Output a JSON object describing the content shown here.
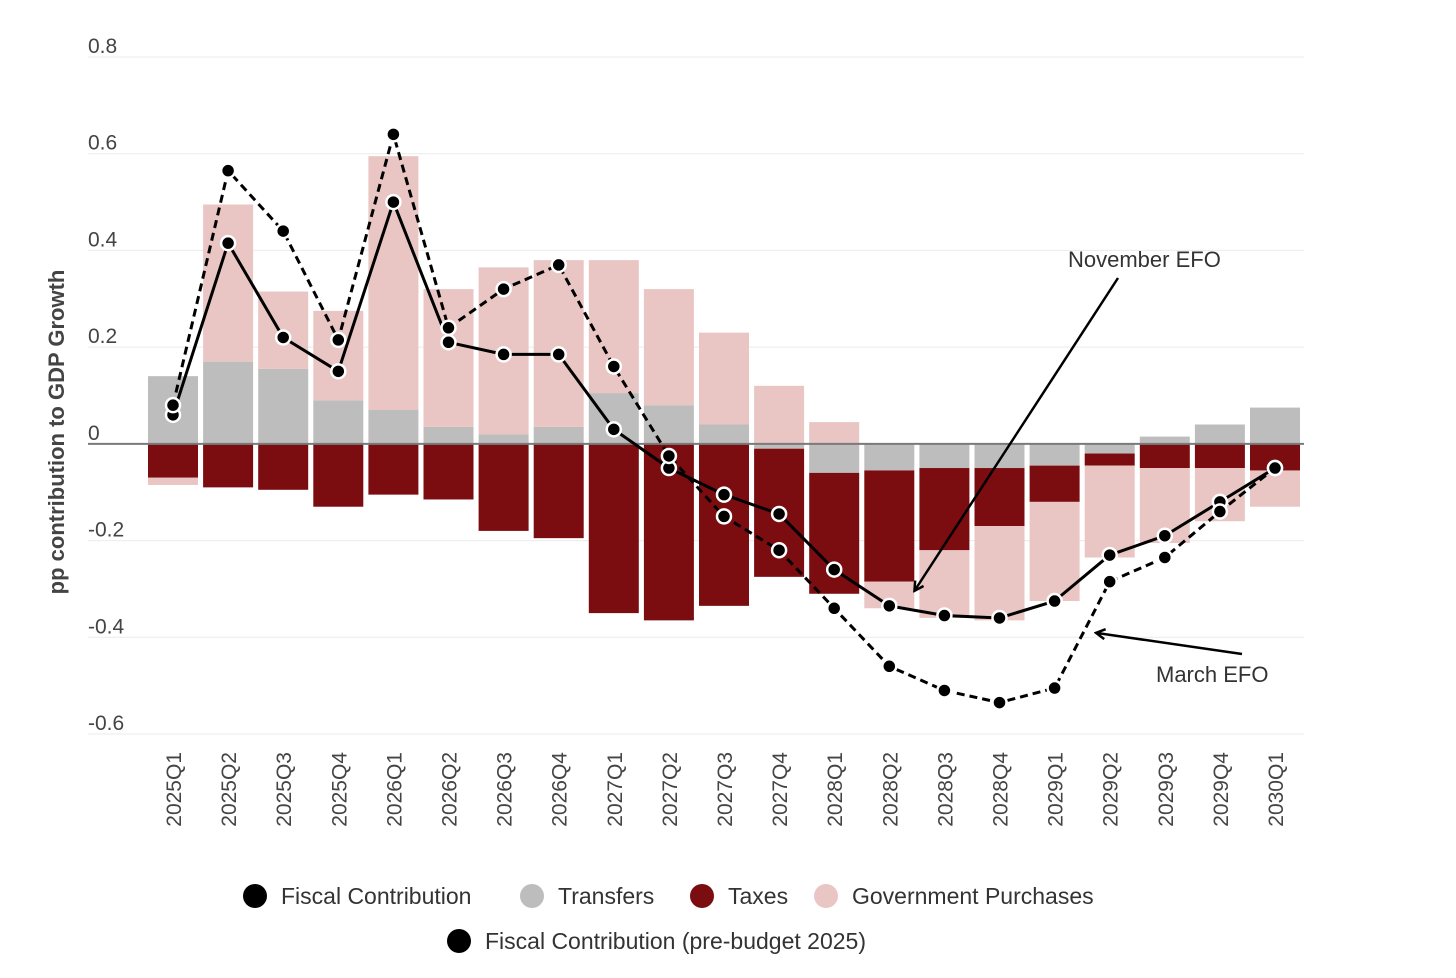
{
  "chart_data": {
    "type": "bar",
    "stacked": true,
    "ylabel": "pp contribution to GDP Growth",
    "ylim": [
      -0.6,
      0.8
    ],
    "yticks": [
      0.8,
      0.6,
      0.4,
      0.2,
      0,
      -0.2,
      -0.4,
      -0.6
    ],
    "ytick_labels": [
      "0.8",
      "0.6",
      "0.4",
      "0.2",
      "0",
      "-0.2",
      "-0.4",
      "-0.6"
    ],
    "grid": true,
    "categories": [
      "2025Q1",
      "2025Q2",
      "2025Q3",
      "2025Q4",
      "2026Q1",
      "2026Q2",
      "2026Q3",
      "2026Q4",
      "2027Q1",
      "2027Q2",
      "2027Q3",
      "2027Q4",
      "2028Q1",
      "2028Q2",
      "2028Q3",
      "2028Q4",
      "2029Q1",
      "2029Q2",
      "2029Q3",
      "2029Q4",
      "2030Q1"
    ],
    "series": [
      {
        "name": "Transfers",
        "type": "bar",
        "color": "#bdbdbd",
        "values": [
          0.14,
          0.17,
          0.155,
          0.09,
          0.07,
          0.035,
          0.02,
          0.035,
          0.105,
          0.08,
          0.04,
          -0.01,
          -0.06,
          -0.055,
          -0.05,
          -0.05,
          -0.045,
          -0.02,
          0.015,
          0.04,
          0.075
        ]
      },
      {
        "name": "Taxes",
        "type": "bar",
        "color": "#7b0c0f",
        "values": [
          -0.07,
          -0.09,
          -0.095,
          -0.13,
          -0.105,
          -0.115,
          -0.18,
          -0.195,
          -0.35,
          -0.365,
          -0.335,
          -0.265,
          -0.25,
          -0.23,
          -0.17,
          -0.12,
          -0.075,
          -0.025,
          -0.05,
          -0.05,
          -0.055
        ]
      },
      {
        "name": "Government Purchases",
        "type": "bar",
        "color": "#e9c6c3",
        "values": [
          -0.015,
          0.325,
          0.16,
          0.185,
          0.525,
          0.285,
          0.345,
          0.345,
          0.275,
          0.24,
          0.19,
          0.12,
          0.045,
          -0.055,
          -0.14,
          -0.195,
          -0.205,
          -0.19,
          -0.155,
          -0.11,
          -0.075
        ]
      },
      {
        "name": "Fiscal Contribution",
        "type": "line",
        "style": "solid",
        "color": "#000000",
        "values": [
          0.06,
          0.415,
          0.22,
          0.15,
          0.5,
          0.21,
          0.185,
          0.185,
          0.03,
          -0.05,
          -0.105,
          -0.145,
          -0.26,
          -0.335,
          -0.355,
          -0.36,
          -0.325,
          -0.23,
          -0.19,
          -0.12,
          -0.05
        ]
      },
      {
        "name": "Fiscal Contribution (pre-budget 2025)",
        "type": "line",
        "style": "dashed",
        "color": "#000000",
        "values": [
          0.08,
          0.565,
          0.44,
          0.215,
          0.64,
          0.24,
          0.32,
          0.37,
          0.16,
          -0.025,
          -0.15,
          -0.22,
          -0.34,
          -0.46,
          -0.51,
          -0.535,
          -0.505,
          -0.285,
          -0.235,
          -0.14,
          -0.05
        ]
      }
    ],
    "annotations": [
      {
        "text": "November EFO",
        "points_to": "Fiscal Contribution",
        "category": "2028Q2"
      },
      {
        "text": "March EFO",
        "points_to": "Fiscal Contribution (pre-budget 2025)",
        "category": "2029Q2"
      }
    ],
    "legend": {
      "position": "bottom",
      "rows": [
        [
          {
            "label": "Fiscal Contribution",
            "color": "#000000"
          },
          {
            "label": "Transfers",
            "color": "#bdbdbd"
          },
          {
            "label": "Taxes",
            "color": "#7b0c0f"
          },
          {
            "label": "Government Purchases",
            "color": "#e9c6c3"
          }
        ],
        [
          {
            "label": "Fiscal Contribution (pre-budget 2025)",
            "color": "#000000"
          }
        ]
      ]
    }
  }
}
